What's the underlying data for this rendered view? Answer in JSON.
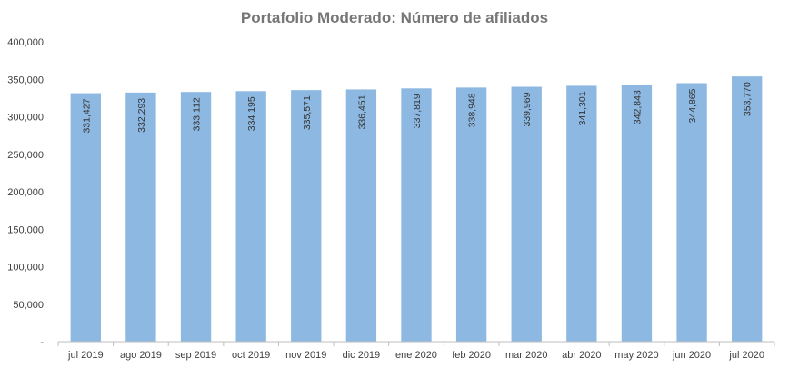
{
  "chart_data": {
    "type": "bar",
    "title": "Portafolio Moderado: Número de afiliados",
    "xlabel": "",
    "ylabel": "",
    "categories": [
      "jul 2019",
      "ago 2019",
      "sep 2019",
      "oct 2019",
      "nov 2019",
      "dic 2019",
      "ene 2020",
      "feb 2020",
      "mar 2020",
      "abr 2020",
      "may 2020",
      "jun 2020",
      "jul 2020"
    ],
    "values": [
      331427,
      332293,
      333112,
      334195,
      335571,
      336451,
      337819,
      338948,
      339969,
      341301,
      342843,
      344865,
      353770
    ],
    "value_labels": [
      "331,427",
      "332,293",
      "333,112",
      "334,195",
      "335,571",
      "336,451",
      "337,819",
      "338,948",
      "339,969",
      "341,301",
      "342,843",
      "344,865",
      "353,770"
    ],
    "ylim": [
      0,
      400000
    ],
    "yticks": [
      0,
      50000,
      100000,
      150000,
      200000,
      250000,
      300000,
      350000,
      400000
    ],
    "ytick_labels": [
      "-",
      "50,000",
      "100,000",
      "150,000",
      "200,000",
      "250,000",
      "300,000",
      "350,000",
      "400,000"
    ],
    "grid": false,
    "legend": "none",
    "colors": {
      "bar": "#8db8e2",
      "title": "#767676",
      "text": "#404040",
      "axis": "#bfbfbf"
    }
  }
}
